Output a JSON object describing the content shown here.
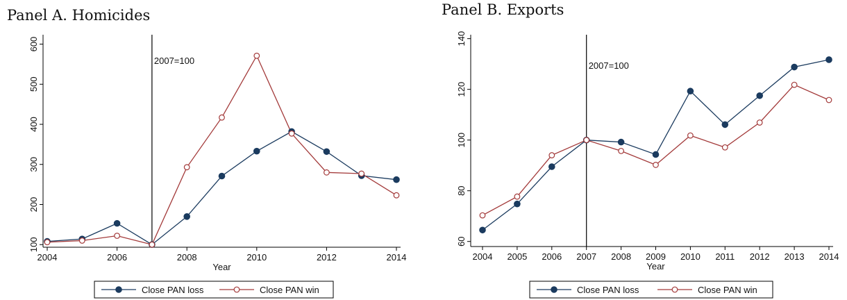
{
  "chart_data": [
    {
      "type": "line",
      "title": "Panel A. Homicides",
      "xlabel": "Year",
      "ylabel": "",
      "x": [
        2004,
        2005,
        2006,
        2007,
        2008,
        2009,
        2010,
        2011,
        2012,
        2013,
        2014
      ],
      "xticks": [
        2004,
        2006,
        2008,
        2010,
        2012,
        2014
      ],
      "yticks": [
        100,
        200,
        300,
        400,
        500,
        600
      ],
      "xlim": [
        2004,
        2014
      ],
      "ylim": [
        90,
        620
      ],
      "vline": {
        "x": 2007,
        "label": "2007=100"
      },
      "series": [
        {
          "name": "Close PAN loss",
          "color": "#1b3b5f",
          "marker": "filled-circle",
          "values": [
            108,
            114,
            153,
            100,
            170,
            271,
            333,
            382,
            332,
            272,
            262
          ]
        },
        {
          "name": "Close PAN win",
          "color": "#a33a3a",
          "marker": "hollow-circle",
          "values": [
            106,
            110,
            122,
            100,
            293,
            417,
            571,
            377,
            280,
            277,
            223
          ]
        }
      ],
      "legend": "bottom"
    },
    {
      "type": "line",
      "title": "Panel B. Exports",
      "xlabel": "Year",
      "ylabel": "",
      "x": [
        2004,
        2005,
        2006,
        2007,
        2008,
        2009,
        2010,
        2011,
        2012,
        2013,
        2014
      ],
      "xticks": [
        2004,
        2005,
        2006,
        2007,
        2008,
        2009,
        2010,
        2011,
        2012,
        2013,
        2014
      ],
      "yticks": [
        60,
        80,
        100,
        120,
        140
      ],
      "xlim": [
        2004,
        2014
      ],
      "ylim": [
        58,
        141
      ],
      "vline": {
        "x": 2007,
        "label": "2007=100"
      },
      "series": [
        {
          "name": "Close PAN loss",
          "color": "#1b3b5f",
          "marker": "filled-circle",
          "values": [
            64.5,
            74.8,
            89.5,
            100,
            99.2,
            94.3,
            119.3,
            106.1,
            117.5,
            128.8,
            131.7
          ]
        },
        {
          "name": "Close PAN win",
          "color": "#a33a3a",
          "marker": "hollow-circle",
          "values": [
            70.3,
            77.7,
            94,
            100,
            95.7,
            90.2,
            101.8,
            97.1,
            106.9,
            121.8,
            115.8
          ]
        }
      ],
      "legend": "bottom"
    }
  ]
}
